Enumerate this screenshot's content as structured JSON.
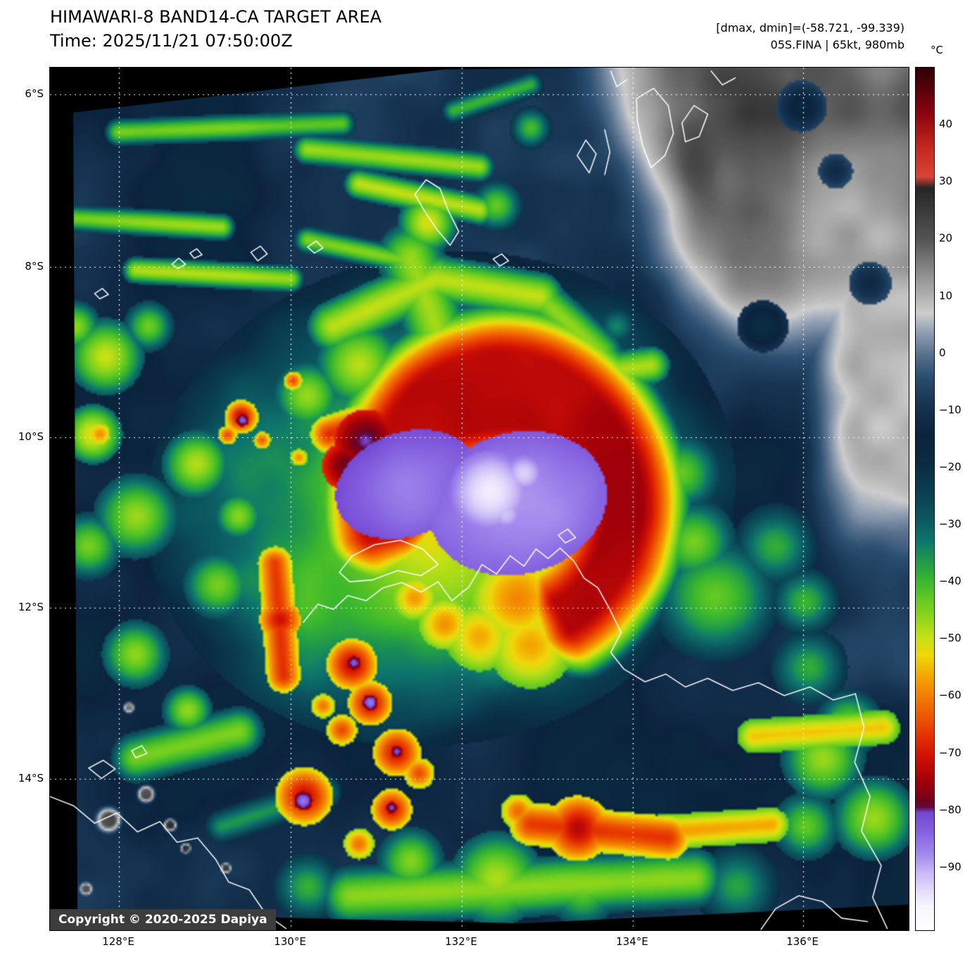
{
  "header": {
    "title": "HIMAWARI-8 BAND14-CA TARGET AREA",
    "time": "Time: 2025/11/21 07:50:00Z",
    "stats": "[dmax, dmin]=(-58.721, -99.339)",
    "storm": "05S.FINA | 65kt, 980mb"
  },
  "plot": {
    "copyright": "Copyright © 2020-2025 Dapiya",
    "x_ticks": [
      "128°E",
      "130°E",
      "132°E",
      "134°E",
      "136°E"
    ],
    "y_ticks": [
      "6°S",
      "8°S",
      "10°S",
      "12°S",
      "14°S"
    ]
  },
  "colorbar": {
    "unit": "°C",
    "ticks": [
      "40",
      "30",
      "20",
      "10",
      "0",
      "−10",
      "−20",
      "−30",
      "−40",
      "−50",
      "−60",
      "−70",
      "−80",
      "−90"
    ]
  },
  "chart_data": {
    "type": "heatmap",
    "description": "Rainbow-enhanced infrared (Band 14) brightness-temperature satellite image of Tropical Cyclone 05S FINA over the Timor Sea / northern Australia. Cold convective cloud tops (green-yellow-red-purple-white) wrap around a central dense overcast; warm clear-sky land appears in grayscale at upper right.",
    "satellite": "HIMAWARI-8",
    "band": "BAND14-CA",
    "time_utc": "2025/11/21 07:50:00Z",
    "dmax_c": -58.721,
    "dmin_c": -99.339,
    "storm": {
      "id": "05S.FINA",
      "intensity_kt": 65,
      "min_pressure_mb": 980,
      "center_estimate": {
        "lon_e": 132.3,
        "lat_s": 10.7
      }
    },
    "x_axis": {
      "type": "longitude",
      "unit": "°E",
      "ticks": [
        128,
        130,
        132,
        134,
        136
      ],
      "range": [
        127.2,
        137.2
      ]
    },
    "y_axis": {
      "type": "latitude",
      "unit": "°S",
      "ticks": [
        6,
        8,
        10,
        12,
        14
      ],
      "range": [
        5.7,
        15.8
      ]
    },
    "colorbar": {
      "unit": "°C",
      "vmax": 50,
      "vmin": -101,
      "ticks": [
        40,
        30,
        20,
        10,
        0,
        -10,
        -20,
        -30,
        -40,
        -50,
        -60,
        -70,
        -80,
        -90
      ],
      "palette_stops": [
        [
          50,
          "#2e0004"
        ],
        [
          42,
          "#8c0410"
        ],
        [
          36,
          "#c62820"
        ],
        [
          31,
          "#d84535"
        ],
        [
          29,
          "#262626"
        ],
        [
          20,
          "#555555"
        ],
        [
          12,
          "#a0a0a0"
        ],
        [
          7,
          "#cdcdcd"
        ],
        [
          4,
          "#96a4b6"
        ],
        [
          0,
          "#5a7390"
        ],
        [
          -4,
          "#2d5070"
        ],
        [
          -9,
          "#163452"
        ],
        [
          -14,
          "#0c243e"
        ],
        [
          -19,
          "#0a2c42"
        ],
        [
          -24,
          "#0a3e52"
        ],
        [
          -29,
          "#0c5860"
        ],
        [
          -33,
          "#0e766c"
        ],
        [
          -36,
          "#1e9650"
        ],
        [
          -40,
          "#3cb92d"
        ],
        [
          -45,
          "#7dd21e"
        ],
        [
          -50,
          "#c8e114"
        ],
        [
          -53,
          "#f0d70a"
        ],
        [
          -57,
          "#f5a000"
        ],
        [
          -62,
          "#f06900"
        ],
        [
          -67,
          "#e63200"
        ],
        [
          -71,
          "#cd0f05"
        ],
        [
          -75,
          "#a0000a"
        ],
        [
          -78,
          "#780019"
        ],
        [
          -79.5,
          "#5f0a3c"
        ],
        [
          -80.5,
          "#7346d2"
        ],
        [
          -84,
          "#8764e1"
        ],
        [
          -88,
          "#a58cee"
        ],
        [
          -91,
          "#c8b9f6"
        ],
        [
          -94,
          "#e4dcfb"
        ],
        [
          -97,
          "#f8f6ff"
        ],
        [
          -101,
          "#ffffff"
        ]
      ]
    },
    "grid": {
      "show": true,
      "style": "white dotted lat/lon grid"
    },
    "overlays": [
      "white coastlines",
      "copyright badge"
    ]
  }
}
